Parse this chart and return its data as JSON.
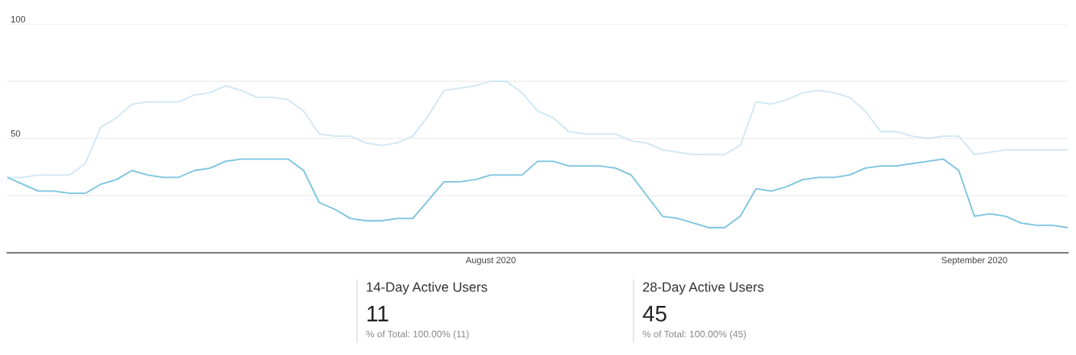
{
  "chart_data": {
    "type": "line",
    "x": [
      "2020-07-01",
      "2020-07-02",
      "2020-07-03",
      "2020-07-04",
      "2020-07-05",
      "2020-07-06",
      "2020-07-07",
      "2020-07-08",
      "2020-07-09",
      "2020-07-10",
      "2020-07-11",
      "2020-07-12",
      "2020-07-13",
      "2020-07-14",
      "2020-07-15",
      "2020-07-16",
      "2020-07-17",
      "2020-07-18",
      "2020-07-19",
      "2020-07-20",
      "2020-07-21",
      "2020-07-22",
      "2020-07-23",
      "2020-07-24",
      "2020-07-25",
      "2020-07-26",
      "2020-07-27",
      "2020-07-28",
      "2020-07-29",
      "2020-07-30",
      "2020-07-31",
      "2020-08-01",
      "2020-08-02",
      "2020-08-03",
      "2020-08-04",
      "2020-08-05",
      "2020-08-06",
      "2020-08-07",
      "2020-08-08",
      "2020-08-09",
      "2020-08-10",
      "2020-08-11",
      "2020-08-12",
      "2020-08-13",
      "2020-08-14",
      "2020-08-15",
      "2020-08-16",
      "2020-08-17",
      "2020-08-18",
      "2020-08-19",
      "2020-08-20",
      "2020-08-21",
      "2020-08-22",
      "2020-08-23",
      "2020-08-24",
      "2020-08-25",
      "2020-08-26",
      "2020-08-27",
      "2020-08-28",
      "2020-08-29",
      "2020-08-30",
      "2020-08-31",
      "2020-09-01",
      "2020-09-02",
      "2020-09-03",
      "2020-09-04",
      "2020-09-05",
      "2020-09-06",
      "2020-09-07"
    ],
    "series": [
      {
        "color": "#cfe7f3",
        "values": [
          33,
          33,
          34,
          34,
          34,
          39,
          55,
          59,
          65,
          66,
          66,
          66,
          69,
          70,
          73,
          71,
          68,
          68,
          67,
          62,
          52,
          51,
          51,
          48,
          47,
          48,
          51,
          60,
          71,
          72,
          73,
          75,
          75,
          70,
          62,
          59,
          53,
          52,
          52,
          52,
          49,
          48,
          45,
          44,
          43,
          43,
          43,
          47,
          66,
          65,
          67,
          70,
          71,
          70,
          68,
          62,
          53,
          53,
          51,
          50,
          51,
          51,
          43,
          44,
          45,
          45,
          45,
          45,
          45
        ]
      },
      {
        "color": "#7cc4e0",
        "values": [
          33,
          30,
          27,
          27,
          26,
          26,
          30,
          32,
          36,
          34,
          33,
          33,
          36,
          37,
          40,
          41,
          41,
          41,
          41,
          36,
          22,
          19,
          15,
          14,
          14,
          15,
          15,
          23,
          31,
          31,
          32,
          34,
          34,
          34,
          40,
          40,
          38,
          38,
          38,
          37,
          34,
          25,
          16,
          15,
          13,
          11,
          11,
          16,
          28,
          27,
          29,
          32,
          33,
          33,
          34,
          37,
          38,
          38,
          39,
          40,
          41,
          36,
          16,
          17,
          16,
          13,
          12,
          12,
          11
        ]
      }
    ],
    "xlim": [
      "2020-07-01",
      "2020-09-07"
    ],
    "xticks": [
      {
        "value": "2020-08-01",
        "label": "August 2020"
      },
      {
        "value": "2020-09-01",
        "label": "September 2020"
      }
    ],
    "ylim": [
      0,
      100
    ],
    "yticks": [
      {
        "value": 25,
        "label": null
      },
      50,
      {
        "value": 75,
        "label": null
      },
      100
    ],
    "grid": "y",
    "marker": "none",
    "line_style": "solid",
    "annotations": [
      "14-Day Active Users",
      "11",
      "% of Total: 100.00% (11)",
      "28-Day Active Users",
      "45",
      "% of Total: 100.00% (45)"
    ]
  }
}
